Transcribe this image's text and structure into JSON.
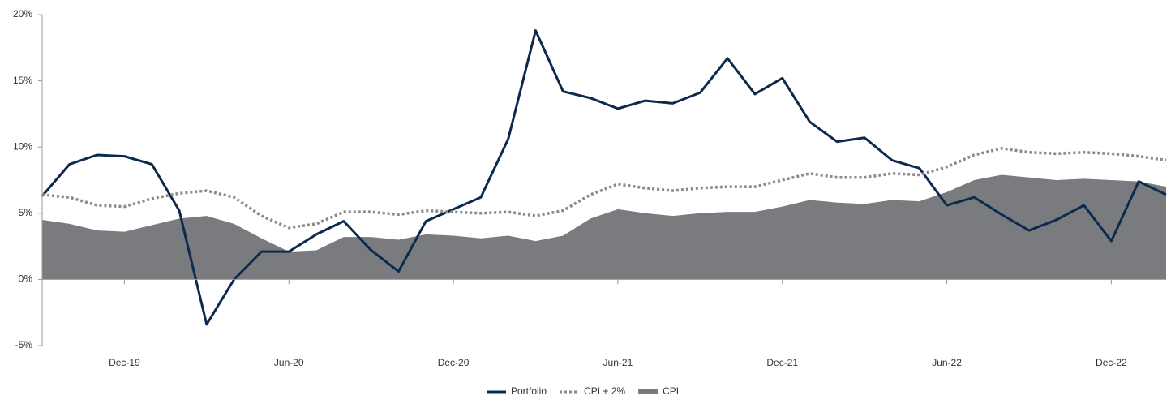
{
  "chart_data": {
    "type": "line",
    "categories": [
      null,
      null,
      null,
      "Dec-19",
      null,
      null,
      null,
      null,
      null,
      "Jun-20",
      null,
      null,
      null,
      null,
      null,
      "Dec-20",
      null,
      null,
      null,
      null,
      null,
      "Jun-21",
      null,
      null,
      null,
      null,
      null,
      "Dec-21",
      null,
      null,
      null,
      null,
      null,
      "Jun-22",
      null,
      null,
      null,
      null,
      null,
      "Dec-22",
      null,
      null
    ],
    "series": [
      {
        "name": "Portfolio",
        "color": "#0d2a4e",
        "style": "solid",
        "values": [
          6.3,
          8.7,
          9.4,
          9.3,
          8.7,
          5.2,
          -3.4,
          0,
          2.1,
          2.1,
          3.4,
          4.4,
          2.2,
          0.6,
          4.4,
          5.3,
          6.2,
          10.6,
          18.8,
          14.2,
          13.7,
          12.9,
          13.5,
          13.3,
          14.1,
          16.7,
          14.0,
          15.2,
          11.9,
          10.4,
          10.7,
          9.0,
          8.4,
          5.6,
          6.2,
          4.9,
          3.7,
          4.5,
          5.6,
          2.9,
          7.4,
          6.4
        ]
      },
      {
        "name": "CPI + 2%",
        "color": "#8a8a8c",
        "style": "dotted",
        "values": [
          6.4,
          6.2,
          5.6,
          5.5,
          6.1,
          6.5,
          6.7,
          6.2,
          4.8,
          3.9,
          4.2,
          5.1,
          5.1,
          4.9,
          5.2,
          5.1,
          5.0,
          5.1,
          4.8,
          5.2,
          6.4,
          7.2,
          6.9,
          6.7,
          6.9,
          7.0,
          7.0,
          7.5,
          8.0,
          7.7,
          7.7,
          8.0,
          7.9,
          8.5,
          9.4,
          9.9,
          9.6,
          9.5,
          9.6,
          9.5,
          9.3,
          9.0
        ]
      },
      {
        "name": "CPI",
        "color": "#7a7b7f",
        "style": "area",
        "values": [
          4.5,
          4.2,
          3.7,
          3.6,
          4.1,
          4.6,
          4.8,
          4.2,
          3.1,
          2.1,
          2.2,
          3.2,
          3.2,
          3.0,
          3.4,
          3.3,
          3.1,
          3.3,
          2.9,
          3.3,
          4.6,
          5.3,
          5.0,
          4.8,
          5.0,
          5.1,
          5.1,
          5.5,
          6.0,
          5.8,
          5.7,
          6.0,
          5.9,
          6.6,
          7.5,
          7.9,
          7.7,
          7.5,
          7.6,
          7.5,
          7.4,
          7.0
        ]
      }
    ],
    "ylim": [
      -5,
      20
    ],
    "yticks": [
      {
        "value": -5,
        "label": "-5%"
      },
      {
        "value": 0,
        "label": "0%"
      },
      {
        "value": 5,
        "label": "5%"
      },
      {
        "value": 10,
        "label": "10%"
      },
      {
        "value": 15,
        "label": "15%"
      },
      {
        "value": 20,
        "label": "20%"
      }
    ],
    "legend": "bottom",
    "grid": false
  }
}
